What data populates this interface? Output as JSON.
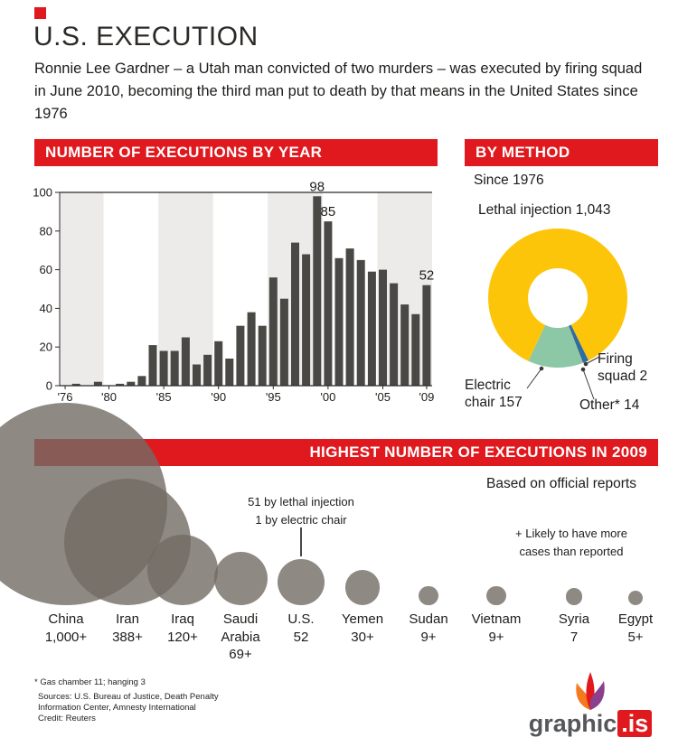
{
  "header": {
    "title": "U.S. EXECUTION",
    "intro": "Ronnie Lee Gardner – a Utah man convicted of two murders – was executed by firing squad in June 2010, becoming the third man put to death by that means in the United States since 1976"
  },
  "colors": {
    "banner_red": "#e0191f",
    "bar": "#4a4844",
    "band": "#ecebe9",
    "axis": "#2b2a28",
    "bubble": "rgba(114,107,100,0.8)"
  },
  "chart_data": [
    {
      "type": "bar",
      "title": "NUMBER OF EXECUTIONS BY YEAR",
      "x_start_year": 1976,
      "values": [
        0,
        1,
        0,
        2,
        0,
        1,
        2,
        5,
        21,
        18,
        18,
        25,
        11,
        16,
        23,
        14,
        31,
        38,
        31,
        56,
        45,
        74,
        68,
        98,
        85,
        66,
        71,
        65,
        59,
        60,
        53,
        42,
        37,
        52
      ],
      "ylim": [
        0,
        100
      ],
      "yticks": [
        0,
        20,
        40,
        60,
        80,
        100
      ],
      "xticks": [
        {
          "index": 0,
          "label": "'76"
        },
        {
          "index": 4,
          "label": "'80"
        },
        {
          "index": 9,
          "label": "'85"
        },
        {
          "index": 14,
          "label": "'90"
        },
        {
          "index": 19,
          "label": "'95"
        },
        {
          "index": 24,
          "label": "'00"
        },
        {
          "index": 29,
          "label": "'05"
        },
        {
          "index": 33,
          "label": "'09"
        }
      ],
      "labeled_years": [
        1999,
        2000,
        2009
      ]
    },
    {
      "type": "pie",
      "title": "BY METHOD",
      "subtitle": "Since 1976",
      "donut": true,
      "start_angle": 205,
      "slices": [
        {
          "label": "Lethal injection",
          "value": 1043,
          "color": "#fdc50a"
        },
        {
          "label": "Other*",
          "value": 14,
          "color": "#2e6ca6"
        },
        {
          "label": "Firing squad",
          "value": 2,
          "color": "#173a5e"
        },
        {
          "label": "Electric chair",
          "value": 157,
          "color": "#8cc7a6"
        }
      ],
      "callout_labels": {
        "lethal": "Lethal injection 1,043",
        "electric": "Electric chair 157",
        "firing": "Firing squad 2",
        "other": "Other* 14"
      }
    },
    {
      "type": "bubble",
      "title": "HIGHEST NUMBER OF EXECUTIONS IN 2009",
      "subtitle": "Based on official reports",
      "plus_note": "+ Likely to have more cases than reported",
      "us_note_line1": "51 by lethal injection",
      "us_note_line2": "1 by electric chair",
      "points": [
        {
          "country": "China",
          "value": 1000,
          "value_label": "1,000+"
        },
        {
          "country": "Iran",
          "value": 388,
          "value_label": "388+"
        },
        {
          "country": "Iraq",
          "value": 120,
          "value_label": "120+"
        },
        {
          "country": "Saudi Arabia",
          "value": 69,
          "value_label": "69+"
        },
        {
          "country": "U.S.",
          "value": 52,
          "value_label": "52"
        },
        {
          "country": "Yemen",
          "value": 30,
          "value_label": "30+"
        },
        {
          "country": "Sudan",
          "value": 9,
          "value_label": "9+"
        },
        {
          "country": "Vietnam",
          "value": 9,
          "value_label": "9+"
        },
        {
          "country": "Syria",
          "value": 7,
          "value_label": "7"
        },
        {
          "country": "Egypt",
          "value": 5,
          "value_label": "5+"
        }
      ]
    }
  ],
  "footer": {
    "note": "* Gas chamber 11;  hanging 3",
    "sources_line1": "Sources: U.S. Bureau of Justice, Death Penalty",
    "sources_line2": "Information Center, Amnesty International",
    "credit": "Credit: Reuters",
    "logo_main": "graphic",
    "logo_tld": ".is"
  }
}
